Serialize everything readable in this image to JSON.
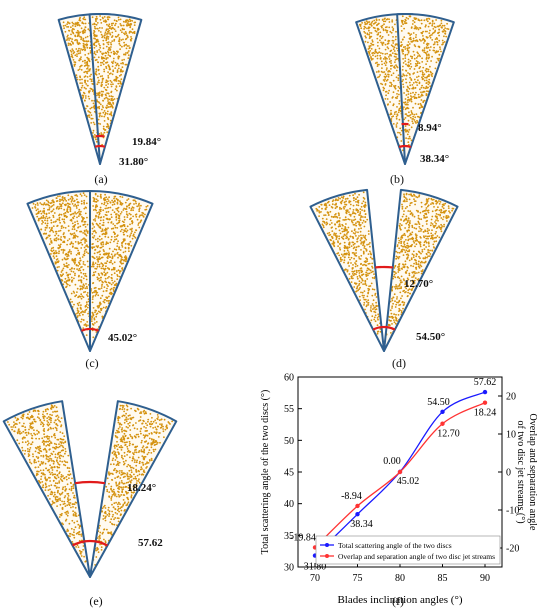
{
  "panels": [
    {
      "id": "a",
      "caption": "(a)",
      "angles": [
        "19.84°",
        "31.80°"
      ]
    },
    {
      "id": "b",
      "caption": "(b)",
      "angles": [
        "8.94°",
        "38.34°"
      ]
    },
    {
      "id": "c",
      "caption": "(c)",
      "angles": [
        "45.02°"
      ]
    },
    {
      "id": "d",
      "caption": "(d)",
      "angles": [
        "12.70°",
        "54.50°"
      ]
    },
    {
      "id": "e",
      "caption": "(e)",
      "angles": [
        "18.24°",
        "57.62"
      ]
    },
    {
      "id": "f",
      "caption": "(f)",
      "angles": []
    }
  ],
  "colors": {
    "fan_stroke": "#2f5f8f",
    "dot": "#d4920f",
    "fan_fill": "#fffaf0",
    "arc": "#e11b1b",
    "series_total": "#1a1aff",
    "series_overlap": "#ff3333"
  },
  "chart_data": {
    "type": "line",
    "xlabel": "Blades inclination angles (°)",
    "ylabel_left": "Total scattering angle of the two discs (°)",
    "ylabel_right": "Overlap and separation angle of two disc jet streams (°)",
    "x": [
      70,
      75,
      80,
      85,
      90
    ],
    "xticks": [
      "70",
      "75",
      "80",
      "85",
      "90"
    ],
    "xlim": [
      68,
      92
    ],
    "ylim_left": [
      30,
      60
    ],
    "yticks_left": [
      "30",
      "35",
      "40",
      "45",
      "50",
      "55",
      "60"
    ],
    "ylim_right": [
      -25,
      25
    ],
    "yticks_right": [
      "-20",
      "-10",
      "0",
      "10",
      "20"
    ],
    "series": [
      {
        "name": "Total scattering angle of the two discs",
        "axis": "left",
        "values": [
          31.8,
          38.34,
          45.02,
          54.5,
          57.62
        ],
        "labels": [
          "31.80",
          "38.34",
          "45.02",
          "54.50",
          "57.62"
        ]
      },
      {
        "name": "Overlap and separation angle of two disc jet streams",
        "axis": "right",
        "values": [
          -19.84,
          -8.94,
          0.0,
          12.7,
          18.24
        ],
        "labels": [
          "-19.84",
          "-8.94",
          "0.00",
          "12.70",
          "18.24"
        ]
      }
    ],
    "legend_position": "bottom-right",
    "grid": false
  }
}
